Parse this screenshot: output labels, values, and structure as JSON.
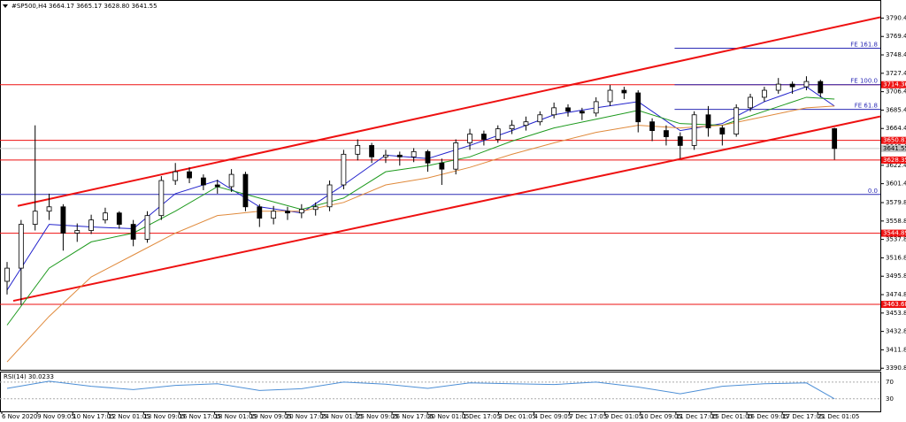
{
  "chart_data": {
    "type": "candlestick",
    "header": "#SP500,H4  3664.17 3665.17 3628.80 3641.55",
    "ylim": [
      3389,
      3809
    ],
    "yticks": [
      {
        "value": 3790.4,
        "label": "3790.40"
      },
      {
        "value": 3769.4,
        "label": "3769.40"
      },
      {
        "value": 3748.4,
        "label": "3748.40"
      },
      {
        "value": 3727.4,
        "label": "3727.40"
      },
      {
        "value": 3706.4,
        "label": "3706.40"
      },
      {
        "value": 3685.4,
        "label": "3685.40"
      },
      {
        "value": 3664.4,
        "label": "3664.40"
      },
      {
        "value": 3643.4,
        "label": "3643.40"
      },
      {
        "value": 3622.4,
        "label": "3622.40"
      },
      {
        "value": 3601.4,
        "label": "3601.40"
      },
      {
        "value": 3579.8,
        "label": "3579.80"
      },
      {
        "value": 3558.8,
        "label": "3558.80"
      },
      {
        "value": 3537.8,
        "label": "3537.80"
      },
      {
        "value": 3516.8,
        "label": "3516.80"
      },
      {
        "value": 3495.8,
        "label": "3495.80"
      },
      {
        "value": 3474.8,
        "label": "3474.80"
      },
      {
        "value": 3453.8,
        "label": "3453.80"
      },
      {
        "value": 3432.8,
        "label": "3432.80"
      },
      {
        "value": 3411.8,
        "label": "3411.80"
      },
      {
        "value": 3390.8,
        "label": "3390.80"
      }
    ],
    "xlabels": [
      "6 Nov 2020",
      "9 Nov 09:05",
      "10 Nov 17:05",
      "12 Nov 01:05",
      "13 Nov 09:05",
      "16 Nov 17:05",
      "18 Nov 01:05",
      "19 Nov 09:05",
      "20 Nov 17:05",
      "24 Nov 01:05",
      "25 Nov 09:05",
      "26 Nov 17:05",
      "30 Nov 01:05",
      "1 Dec 17:05",
      "3 Dec 01:05",
      "4 Dec 09:05",
      "7 Dec 17:05",
      "9 Dec 01:05",
      "10 Dec 09:05",
      "11 Dec 17:05",
      "15 Dec 01:05",
      "16 Dec 09:05",
      "17 Dec 17:05",
      "21 Dec 01:05"
    ],
    "open": [
      3490,
      3505,
      3555,
      3570,
      3575,
      3545,
      3548,
      3560,
      3568,
      3555,
      3538,
      3565,
      3605,
      3615,
      3608,
      3600,
      3598,
      3612,
      3575,
      3562,
      3570,
      3568,
      3572,
      3575,
      3600,
      3635,
      3645,
      3632,
      3634,
      3632,
      3638,
      3625,
      3618,
      3648,
      3658,
      3652,
      3664,
      3668,
      3672,
      3680,
      3688,
      3684,
      3682,
      3695,
      3708,
      3705,
      3672,
      3662,
      3655,
      3645,
      3680,
      3665,
      3658,
      3688,
      3700,
      3708,
      3715,
      3712,
      3718,
      3664.17
    ],
    "high": [
      3512,
      3560,
      3668,
      3590,
      3578,
      3556,
      3566,
      3574,
      3570,
      3560,
      3570,
      3610,
      3625,
      3620,
      3612,
      3606,
      3618,
      3615,
      3578,
      3576,
      3575,
      3578,
      3580,
      3605,
      3640,
      3652,
      3648,
      3640,
      3638,
      3642,
      3640,
      3630,
      3652,
      3664,
      3662,
      3668,
      3674,
      3678,
      3684,
      3694,
      3692,
      3688,
      3700,
      3714,
      3712,
      3708,
      3676,
      3668,
      3660,
      3684,
      3690,
      3668,
      3692,
      3704,
      3712,
      3722,
      3718,
      3724,
      3720,
      3665.17
    ],
    "low": [
      3475,
      3463,
      3548,
      3560,
      3525,
      3535,
      3544,
      3556,
      3550,
      3530,
      3534,
      3560,
      3600,
      3602,
      3594,
      3590,
      3592,
      3570,
      3552,
      3555,
      3560,
      3562,
      3565,
      3570,
      3595,
      3628,
      3625,
      3625,
      3622,
      3626,
      3615,
      3600,
      3612,
      3640,
      3645,
      3648,
      3658,
      3662,
      3668,
      3676,
      3678,
      3674,
      3678,
      3690,
      3698,
      3660,
      3650,
      3645,
      3630,
      3640,
      3655,
      3645,
      3655,
      3684,
      3695,
      3704,
      3704,
      3708,
      3700,
      3628.8
    ],
    "close": [
      3505,
      3555,
      3570,
      3575,
      3545,
      3548,
      3560,
      3568,
      3555,
      3538,
      3565,
      3605,
      3615,
      3608,
      3600,
      3598,
      3612,
      3575,
      3562,
      3570,
      3568,
      3572,
      3575,
      3600,
      3635,
      3645,
      3632,
      3634,
      3632,
      3638,
      3625,
      3618,
      3648,
      3658,
      3652,
      3664,
      3668,
      3672,
      3680,
      3688,
      3684,
      3682,
      3695,
      3708,
      3705,
      3672,
      3662,
      3655,
      3645,
      3680,
      3665,
      3658,
      3688,
      3700,
      3708,
      3715,
      3712,
      3718,
      3705,
      3641.55
    ],
    "indicators": [
      {
        "color": "#2222cc",
        "x": [
          0,
          3,
          6,
          9,
          12,
          15,
          18,
          21,
          24,
          27,
          30,
          33,
          36,
          39,
          42,
          45,
          48,
          51,
          54,
          57,
          59
        ],
        "values": [
          3480,
          3555,
          3552,
          3550,
          3590,
          3605,
          3575,
          3568,
          3600,
          3634,
          3630,
          3645,
          3662,
          3680,
          3688,
          3695,
          3662,
          3670,
          3695,
          3712,
          3690
        ]
      },
      {
        "color": "#1e9a1e",
        "x": [
          0,
          3,
          6,
          9,
          12,
          15,
          18,
          21,
          24,
          27,
          30,
          33,
          36,
          39,
          42,
          45,
          48,
          51,
          54,
          57,
          59
        ],
        "values": [
          3440,
          3505,
          3535,
          3545,
          3570,
          3598,
          3585,
          3572,
          3585,
          3615,
          3622,
          3632,
          3650,
          3665,
          3675,
          3685,
          3670,
          3668,
          3684,
          3700,
          3698
        ]
      },
      {
        "color": "#e08a3c",
        "x": [
          0,
          3,
          6,
          9,
          12,
          15,
          18,
          21,
          24,
          27,
          30,
          33,
          36,
          39,
          42,
          45,
          48,
          51,
          54,
          57,
          59
        ],
        "values": [
          3398,
          3450,
          3495,
          3520,
          3545,
          3565,
          3570,
          3570,
          3580,
          3600,
          3608,
          3620,
          3635,
          3648,
          3660,
          3668,
          3665,
          3668,
          3678,
          3688,
          3690
        ]
      }
    ],
    "channel_color": "#ee1111",
    "channels": [
      {
        "x": [
          0.76,
          62.27
        ],
        "values": [
          3576,
          3791.4
        ]
      },
      {
        "x": [
          0.44,
          62.27
        ],
        "values": [
          3467.7,
          3678.1
        ]
      }
    ],
    "levels_color": "#ee1111",
    "levels": [
      3714.36,
      3650.81,
      3628.35,
      3544.89,
      3463.68
    ],
    "fibo_color": "#2b2bb5",
    "fibo": [
      {
        "label": "FE 161.8",
        "value": 3756,
        "from_x": 47.6
      },
      {
        "label": "FE 100.0",
        "value": 3714.36,
        "from_x": 47.6
      },
      {
        "label": "FE 61.8",
        "value": 3686.2,
        "from_x": 47.6
      },
      {
        "label": "0.0",
        "value": 3589.1,
        "from_x": -1
      }
    ],
    "bid": 3641.55,
    "rsi": {
      "title": "RSI(14) 30.0233",
      "color": "#4d8fd6",
      "ylim": [
        0,
        95
      ],
      "yticks": [
        70,
        30
      ],
      "x": [
        0,
        3,
        6,
        9,
        12,
        15,
        18,
        21,
        24,
        27,
        30,
        33,
        36,
        39,
        42,
        45,
        48,
        51,
        54,
        57,
        59
      ],
      "values": [
        55,
        72,
        60,
        52,
        62,
        66,
        50,
        54,
        70,
        65,
        55,
        68,
        66,
        64,
        70,
        58,
        42,
        60,
        66,
        68,
        30.0233
      ]
    }
  }
}
